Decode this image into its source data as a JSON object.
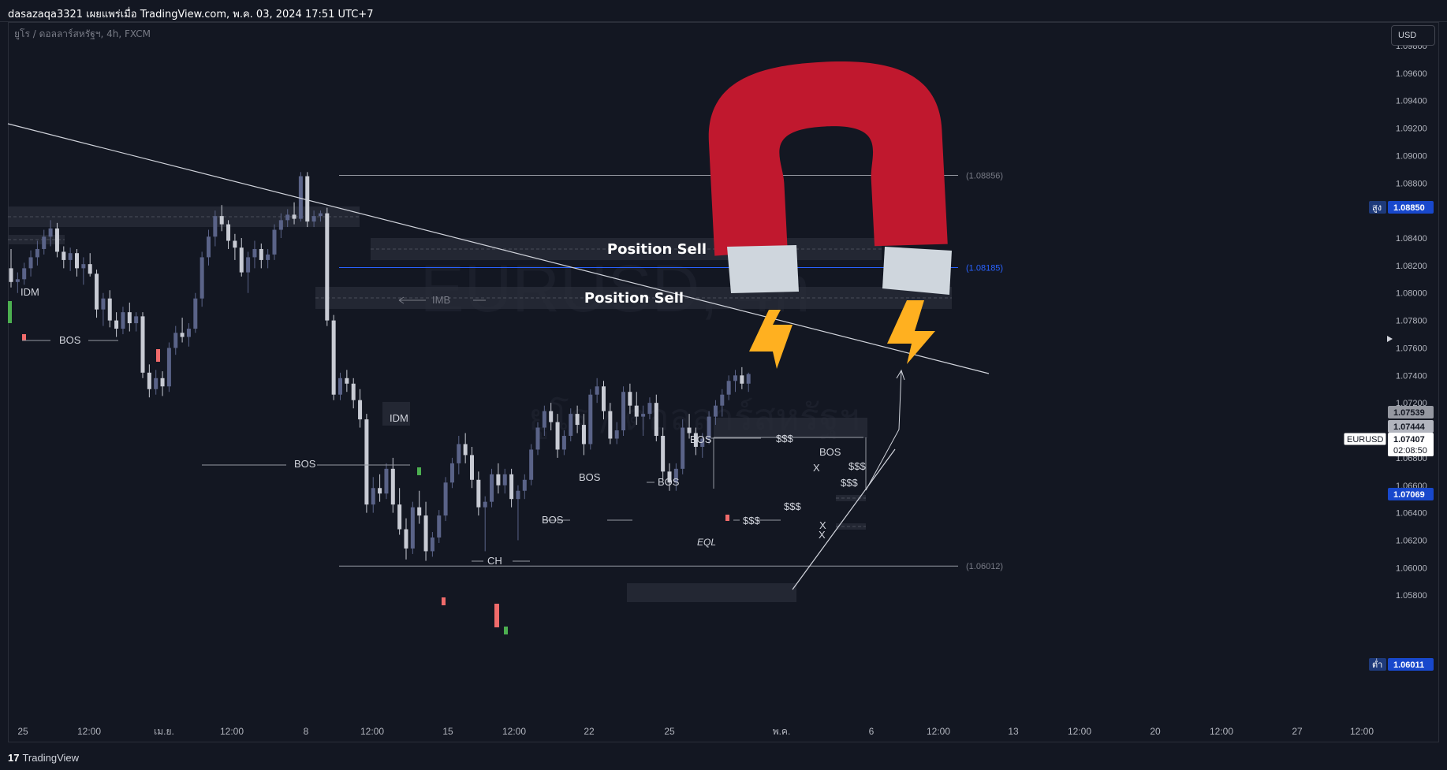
{
  "header": {
    "title": "dasazaqa3321 เผยแพร่เมื่อ TradingView.com, พ.ค. 03, 2024 17:51 UTC+7"
  },
  "symbol_info": "ยูโร / ดอลลาร์สหรัฐฯ, 4h, FXCM",
  "currency_button": "USD",
  "footer": {
    "brand": "TradingView",
    "logo": "17"
  },
  "watermark": {
    "symbol": "EURUSD, 4h",
    "name": "ยูโร / ดอลลาร์สหรัฐฯ"
  },
  "colors": {
    "background": "#131722",
    "bull": "#5a6388",
    "bear": "#c8cbd4",
    "magnet_red": "#c0182e",
    "bolt": "#ffb020",
    "accent_blue": "#2962ff"
  },
  "chart_data": {
    "type": "candlestick",
    "symbol": "EURUSD",
    "timeframe": "4h",
    "ylim": [
      1.0575,
      1.0992
    ],
    "price_ticks": [
      "1.09800",
      "1.09600",
      "1.09400",
      "1.09200",
      "1.09000",
      "1.08800",
      "1.08600",
      "1.08400",
      "1.08200",
      "1.08000",
      "1.07800",
      "1.07600",
      "1.07400",
      "1.07200",
      "1.07000",
      "1.06800",
      "1.06600",
      "1.06400",
      "1.06200",
      "1.06000",
      "1.05800"
    ],
    "time_ticks": [
      "25",
      "12:00",
      "เม.ย.",
      "12:00",
      "8",
      "12:00",
      "15",
      "12:00",
      "22",
      "25",
      "พ.ค.",
      "6",
      "12:00",
      "13",
      "12:00",
      "20",
      "12:00",
      "27",
      "12:00"
    ],
    "price_labels": [
      {
        "label": "สูง",
        "value": "1.08850"
      },
      {
        "label": "",
        "value": "1.07539"
      },
      {
        "label": "",
        "value": "1.07444"
      },
      {
        "label": "EURUSD",
        "value": "1.07407",
        "sub": "02:08:50"
      },
      {
        "label": "",
        "value": "1.07069"
      },
      {
        "label": "ต่ำ",
        "value": "1.06011"
      }
    ],
    "levels": [
      {
        "price": 1.08856,
        "label": "(1.08856)"
      },
      {
        "price": 1.08185,
        "label": "(1.08185)"
      },
      {
        "price": 1.06012,
        "label": "(1.06012)"
      }
    ],
    "zones": [
      {
        "label": "Position Sell",
        "from": 1.08535,
        "to": 1.08665
      },
      {
        "label": "Position Sell",
        "from": 1.0822,
        "to": 1.0836
      }
    ],
    "annotations": [
      "IDM",
      "BOS",
      "BOS",
      "IMB",
      "IDM",
      "BOS",
      "CH",
      "BOS",
      "BOS",
      "BOS",
      "$$$",
      "EQL",
      "$$$",
      "BOS",
      "X",
      "$$$",
      "$$$",
      "$$$",
      "X",
      "X"
    ],
    "ohlc": [
      [
        1.0818,
        1.0832,
        1.0804,
        1.0808
      ],
      [
        1.0808,
        1.0815,
        1.08,
        1.081
      ],
      [
        1.081,
        1.0822,
        1.0806,
        1.0818
      ],
      [
        1.0818,
        1.0831,
        1.0812,
        1.0826
      ],
      [
        1.0826,
        1.0838,
        1.082,
        1.0832
      ],
      [
        1.0832,
        1.0846,
        1.0828,
        1.0841
      ],
      [
        1.0841,
        1.0853,
        1.0834,
        1.0847
      ],
      [
        1.0847,
        1.0851,
        1.0826,
        1.083
      ],
      [
        1.083,
        1.0834,
        1.0818,
        1.0824
      ],
      [
        1.0824,
        1.0833,
        1.0816,
        1.0829
      ],
      [
        1.0829,
        1.0832,
        1.0812,
        1.0818
      ],
      [
        1.0818,
        1.0826,
        1.0806,
        1.0821
      ],
      [
        1.0821,
        1.0829,
        1.0812,
        1.0814
      ],
      [
        1.0814,
        1.0817,
        1.0782,
        1.0788
      ],
      [
        1.0788,
        1.08,
        1.0776,
        1.0796
      ],
      [
        1.0796,
        1.0802,
        1.0775,
        1.078
      ],
      [
        1.078,
        1.0786,
        1.0768,
        1.0774
      ],
      [
        1.0774,
        1.079,
        1.077,
        1.0786
      ],
      [
        1.0786,
        1.0793,
        1.0772,
        1.0778
      ],
      [
        1.0778,
        1.0786,
        1.0772,
        1.0783
      ],
      [
        1.0783,
        1.0786,
        1.0738,
        1.0742
      ],
      [
        1.0742,
        1.0748,
        1.0724,
        1.073
      ],
      [
        1.073,
        1.0744,
        1.0726,
        1.0738
      ],
      [
        1.0738,
        1.0743,
        1.0725,
        1.0732
      ],
      [
        1.0732,
        1.0764,
        1.0728,
        1.076
      ],
      [
        1.076,
        1.0776,
        1.0755,
        1.0771
      ],
      [
        1.0771,
        1.0782,
        1.0764,
        1.0768
      ],
      [
        1.0768,
        1.0778,
        1.0761,
        1.0774
      ],
      [
        1.0774,
        1.08,
        1.0771,
        1.0796
      ],
      [
        1.0796,
        1.083,
        1.079,
        1.0826
      ],
      [
        1.0826,
        1.0846,
        1.082,
        1.0841
      ],
      [
        1.0841,
        1.086,
        1.0834,
        1.0856
      ],
      [
        1.0856,
        1.0864,
        1.0845,
        1.085
      ],
      [
        1.085,
        1.0853,
        1.0832,
        1.0838
      ],
      [
        1.0838,
        1.0843,
        1.0824,
        1.0833
      ],
      [
        1.0833,
        1.084,
        1.0812,
        1.0815
      ],
      [
        1.0815,
        1.083,
        1.08,
        1.0826
      ],
      [
        1.0826,
        1.0838,
        1.0818,
        1.0832
      ],
      [
        1.0832,
        1.0836,
        1.0818,
        1.0824
      ],
      [
        1.0824,
        1.0832,
        1.0818,
        1.0828
      ],
      [
        1.0828,
        1.085,
        1.0824,
        1.0846
      ],
      [
        1.0846,
        1.0858,
        1.084,
        1.0853
      ],
      [
        1.0853,
        1.0861,
        1.0848,
        1.0857
      ],
      [
        1.0857,
        1.0866,
        1.085,
        1.0854
      ],
      [
        1.0854,
        1.0888,
        1.0852,
        1.0885
      ],
      [
        1.0885,
        1.0888,
        1.0848,
        1.0852
      ],
      [
        1.0852,
        1.086,
        1.0848,
        1.0856
      ],
      [
        1.0856,
        1.086,
        1.0852,
        1.0858
      ],
      [
        1.0858,
        1.0862,
        1.0776,
        1.078
      ],
      [
        1.078,
        1.0784,
        1.0722,
        1.0726
      ],
      [
        1.0726,
        1.0742,
        1.0722,
        1.0738
      ],
      [
        1.0738,
        1.0744,
        1.0728,
        1.0734
      ],
      [
        1.0734,
        1.0738,
        1.0716,
        1.0722
      ],
      [
        1.0722,
        1.073,
        1.0702,
        1.0708
      ],
      [
        1.0708,
        1.0712,
        1.064,
        1.0646
      ],
      [
        1.0646,
        1.0666,
        1.064,
        1.0658
      ],
      [
        1.0658,
        1.0668,
        1.0648,
        1.0654
      ],
      [
        1.0654,
        1.0676,
        1.065,
        1.0672
      ],
      [
        1.0672,
        1.068,
        1.064,
        1.0646
      ],
      [
        1.0646,
        1.0658,
        1.0624,
        1.0628
      ],
      [
        1.0628,
        1.0636,
        1.0606,
        1.0614
      ],
      [
        1.0614,
        1.0648,
        1.061,
        1.0644
      ],
      [
        1.0644,
        1.0656,
        1.0632,
        1.0638
      ],
      [
        1.0638,
        1.0648,
        1.0605,
        1.0612
      ],
      [
        1.0612,
        1.0626,
        1.0608,
        1.0622
      ],
      [
        1.0622,
        1.0642,
        1.0618,
        1.0638
      ],
      [
        1.0638,
        1.0666,
        1.0634,
        1.0662
      ],
      [
        1.0662,
        1.068,
        1.0658,
        1.0676
      ],
      [
        1.0676,
        1.0696,
        1.0668,
        1.069
      ],
      [
        1.069,
        1.0698,
        1.0676,
        1.0682
      ],
      [
        1.0682,
        1.0688,
        1.0658,
        1.0664
      ],
      [
        1.0664,
        1.067,
        1.0638,
        1.0644
      ],
      [
        1.0644,
        1.0652,
        1.0612,
        1.0648
      ],
      [
        1.0648,
        1.0672,
        1.0644,
        1.0668
      ],
      [
        1.0668,
        1.0676,
        1.0654,
        1.066
      ],
      [
        1.066,
        1.0672,
        1.0654,
        1.0668
      ],
      [
        1.0668,
        1.0672,
        1.0644,
        1.065
      ],
      [
        1.065,
        1.066,
        1.062,
        1.0656
      ],
      [
        1.0656,
        1.0668,
        1.065,
        1.0664
      ],
      [
        1.0664,
        1.069,
        1.066,
        1.0686
      ],
      [
        1.0686,
        1.0706,
        1.0682,
        1.0702
      ],
      [
        1.0702,
        1.0718,
        1.0696,
        1.0714
      ],
      [
        1.0714,
        1.072,
        1.07,
        1.0706
      ],
      [
        1.0706,
        1.0712,
        1.068,
        1.0686
      ],
      [
        1.0686,
        1.07,
        1.0682,
        1.0696
      ],
      [
        1.0696,
        1.0716,
        1.0692,
        1.0712
      ],
      [
        1.0712,
        1.0718,
        1.0698,
        1.0704
      ],
      [
        1.0704,
        1.0712,
        1.0682,
        1.069
      ],
      [
        1.069,
        1.073,
        1.0686,
        1.0726
      ],
      [
        1.0726,
        1.0738,
        1.072,
        1.0732
      ],
      [
        1.0732,
        1.0736,
        1.0708,
        1.0714
      ],
      [
        1.0714,
        1.072,
        1.069,
        1.0694
      ],
      [
        1.0694,
        1.0706,
        1.069,
        1.07
      ],
      [
        1.07,
        1.0732,
        1.0696,
        1.0728
      ],
      [
        1.0728,
        1.0734,
        1.0712,
        1.0718
      ],
      [
        1.0718,
        1.0728,
        1.0704,
        1.071
      ],
      [
        1.071,
        1.0718,
        1.0696,
        1.0712
      ],
      [
        1.0712,
        1.0724,
        1.0708,
        1.072
      ],
      [
        1.072,
        1.0726,
        1.0692,
        1.0696
      ],
      [
        1.0696,
        1.0702,
        1.0664,
        1.067
      ],
      [
        1.067,
        1.0676,
        1.0656,
        1.0662
      ],
      [
        1.0662,
        1.0676,
        1.0656,
        1.0672
      ],
      [
        1.0672,
        1.0708,
        1.0668,
        1.0702
      ],
      [
        1.0702,
        1.0712,
        1.0694,
        1.0698
      ],
      [
        1.0698,
        1.0702,
        1.0682,
        1.0688
      ],
      [
        1.0688,
        1.0698,
        1.068,
        1.0694
      ],
      [
        1.0694,
        1.0714,
        1.069,
        1.071
      ],
      [
        1.071,
        1.0722,
        1.0704,
        1.0718
      ],
      [
        1.0718,
        1.073,
        1.071,
        1.0726
      ],
      [
        1.0726,
        1.074,
        1.0722,
        1.0736
      ],
      [
        1.0736,
        1.0744,
        1.0728,
        1.074
      ],
      [
        1.074,
        1.0746,
        1.073,
        1.0734
      ],
      [
        1.0734,
        1.0742,
        1.0728,
        1.0741
      ]
    ]
  }
}
